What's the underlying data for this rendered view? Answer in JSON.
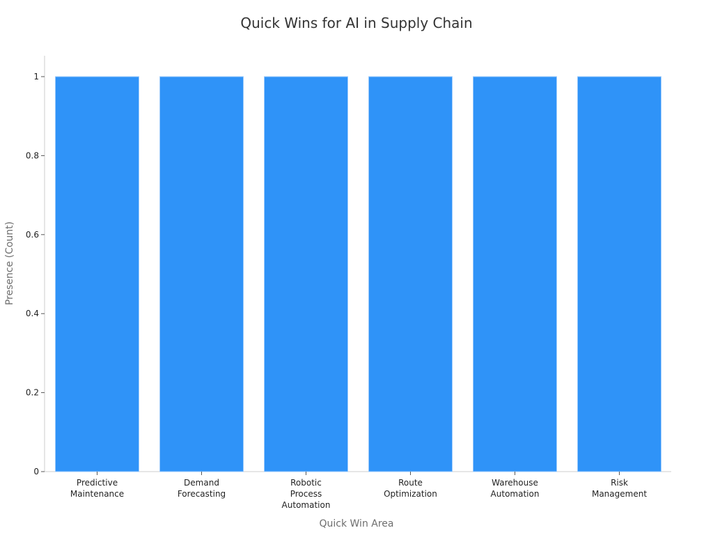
{
  "chart_data": {
    "type": "bar",
    "title": "Quick Wins for AI in Supply Chain",
    "xlabel": "Quick Win Area",
    "ylabel": "Presence (Count)",
    "categories": [
      [
        "Predictive",
        "Maintenance"
      ],
      [
        "Demand",
        "Forecasting"
      ],
      [
        "Robotic",
        "Process",
        "Automation"
      ],
      [
        "Route",
        "Optimization"
      ],
      [
        "Warehouse",
        "Automation"
      ],
      [
        "Risk",
        "Management"
      ]
    ],
    "values": [
      1,
      1,
      1,
      1,
      1,
      1
    ],
    "ylim": [
      0,
      1.05
    ],
    "yticks": [
      "0",
      "0.2",
      "0.4",
      "0.6",
      "0.8",
      "1"
    ],
    "ytick_values": [
      0,
      0.2,
      0.4,
      0.6,
      0.8,
      1
    ],
    "bar_color": "#2f93f8",
    "bar_edge_color": "#9ecbfb",
    "grid": false,
    "legend": "none"
  }
}
